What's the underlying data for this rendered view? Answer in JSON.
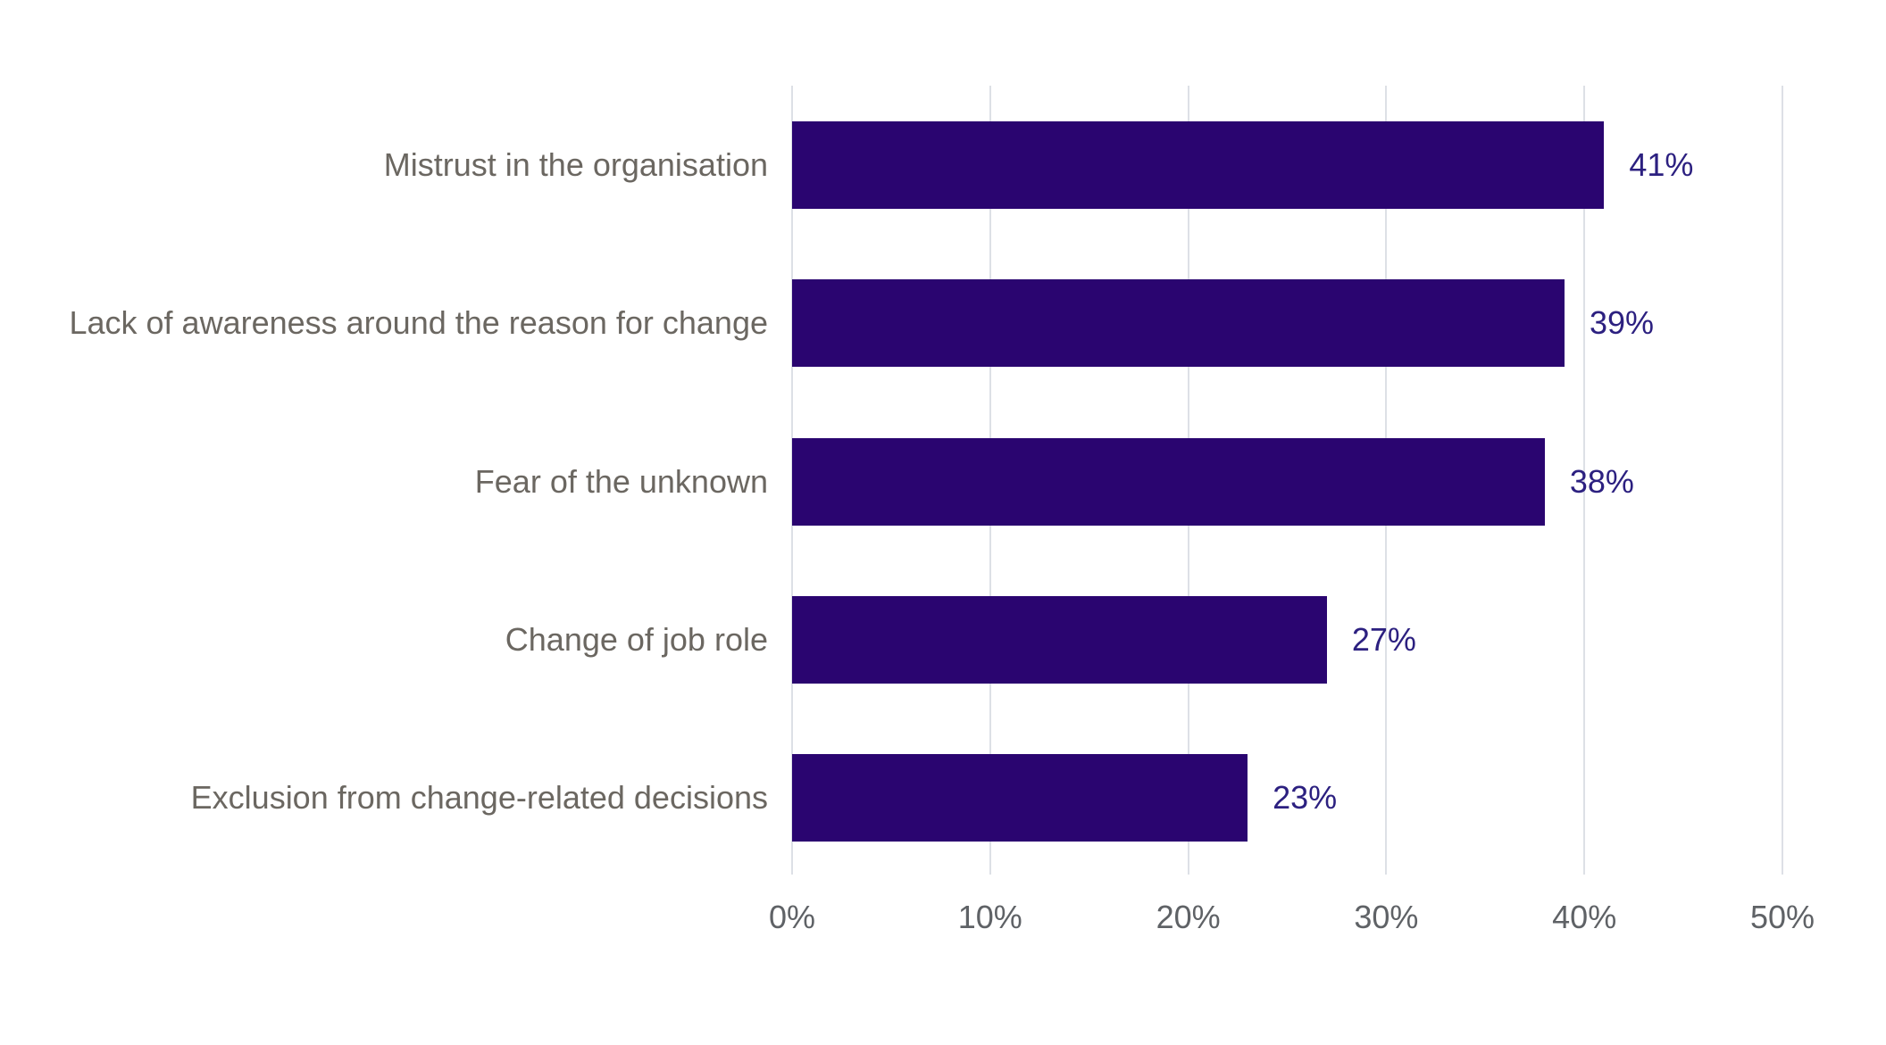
{
  "chart_data": {
    "type": "bar",
    "orientation": "horizontal",
    "title": "",
    "xlabel": "",
    "ylabel": "",
    "categories": [
      "Mistrust in the organisation",
      "Lack of awareness around the reason for change",
      "Fear of the unknown",
      "Change of job role",
      "Exclusion from change-related decisions"
    ],
    "values": [
      41,
      39,
      38,
      27,
      23
    ],
    "value_labels": [
      "41%",
      "39%",
      "38%",
      "27%",
      "23%"
    ],
    "xlim": [
      0,
      50
    ],
    "x_ticks": [
      0,
      10,
      20,
      30,
      40,
      50
    ],
    "x_tick_labels": [
      "0%",
      "10%",
      "20%",
      "30%",
      "40%",
      "50%"
    ],
    "grid": "vertical-only",
    "legend": "none",
    "colors": {
      "bar": "#2a0570",
      "value_label": "#2c2080",
      "category_label": "#6b6761",
      "tick_label": "#5f6266",
      "gridline": "#dde0e6",
      "background": "#ffffff"
    }
  }
}
